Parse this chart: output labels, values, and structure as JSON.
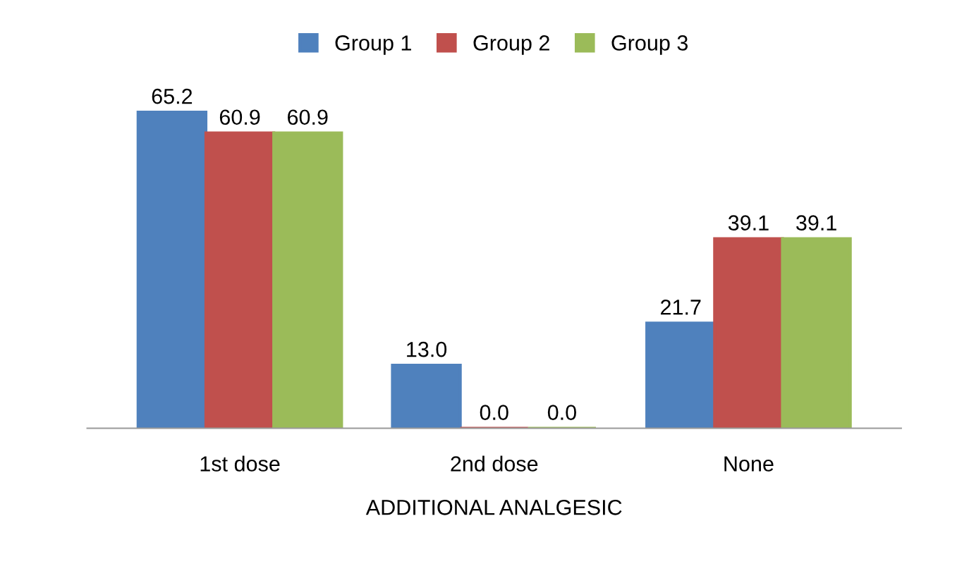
{
  "chart_data": {
    "type": "bar",
    "xlabel": "ADDITIONAL ANALGESIC",
    "categories": [
      "1st dose",
      "2nd dose",
      "None"
    ],
    "series": [
      {
        "name": "Group 1",
        "color": "#4f81bd",
        "values": [
          65.2,
          13.0,
          21.7
        ],
        "value_labels": [
          "65.2",
          "13.0",
          "21.7"
        ]
      },
      {
        "name": "Group 2",
        "color": "#c0504d",
        "values": [
          60.9,
          0.0,
          39.1
        ],
        "value_labels": [
          "60.9",
          "0.0",
          "39.1"
        ]
      },
      {
        "name": "Group 3",
        "color": "#9bbb59",
        "values": [
          60.9,
          0.0,
          39.1
        ],
        "value_labels": [
          "60.9",
          "0.0",
          "39.1"
        ]
      }
    ],
    "legend": "top",
    "grid": false
  }
}
